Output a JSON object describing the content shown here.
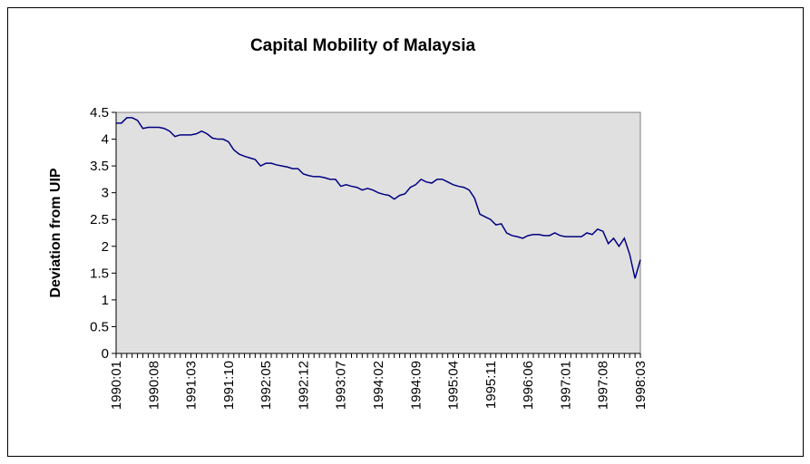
{
  "chart_data": {
    "type": "line",
    "title": "Capital Mobility of Malaysia",
    "y_label": "Deviation from UIP",
    "categories": [
      "1990:01",
      null,
      null,
      null,
      null,
      null,
      null,
      "1990:08",
      null,
      null,
      null,
      null,
      null,
      null,
      "1991:03",
      null,
      null,
      null,
      null,
      null,
      null,
      "1991:10",
      null,
      null,
      null,
      null,
      null,
      null,
      "1992:05",
      null,
      null,
      null,
      null,
      null,
      null,
      "1992:12",
      null,
      null,
      null,
      null,
      null,
      null,
      "1993:07",
      null,
      null,
      null,
      null,
      null,
      null,
      "1994:02",
      null,
      null,
      null,
      null,
      null,
      null,
      "1994:09",
      null,
      null,
      null,
      null,
      null,
      null,
      "1995:04",
      null,
      null,
      null,
      null,
      null,
      null,
      "1995:11",
      null,
      null,
      null,
      null,
      null,
      null,
      "1996:06",
      null,
      null,
      null,
      null,
      null,
      null,
      "1997:01",
      null,
      null,
      null,
      null,
      null,
      null,
      "1997:08",
      null,
      null,
      null,
      null,
      null,
      null,
      "1998:03"
    ],
    "values": [
      4.3,
      4.3,
      4.4,
      4.4,
      4.35,
      4.2,
      4.22,
      4.22,
      4.22,
      4.2,
      4.15,
      4.05,
      4.08,
      4.08,
      4.08,
      4.1,
      4.15,
      4.1,
      4.02,
      4.0,
      4.0,
      3.95,
      3.8,
      3.72,
      3.68,
      3.65,
      3.62,
      3.5,
      3.55,
      3.55,
      3.52,
      3.5,
      3.48,
      3.45,
      3.45,
      3.35,
      3.32,
      3.3,
      3.3,
      3.28,
      3.25,
      3.25,
      3.12,
      3.15,
      3.12,
      3.1,
      3.05,
      3.08,
      3.05,
      3.0,
      2.97,
      2.95,
      2.88,
      2.95,
      2.98,
      3.1,
      3.15,
      3.25,
      3.2,
      3.18,
      3.25,
      3.25,
      3.2,
      3.15,
      3.12,
      3.1,
      3.05,
      2.9,
      2.6,
      2.55,
      2.5,
      2.4,
      2.42,
      2.25,
      2.2,
      2.18,
      2.15,
      2.2,
      2.22,
      2.22,
      2.2,
      2.2,
      2.25,
      2.2,
      2.18,
      2.18,
      2.18,
      2.18,
      2.25,
      2.22,
      2.32,
      2.28,
      2.05,
      2.15,
      2.0,
      2.15,
      1.85,
      1.4,
      1.75
    ],
    "color": "#000080",
    "ylim": [
      0,
      4.5
    ],
    "yticks": [
      0,
      0.5,
      1,
      1.5,
      2,
      2.5,
      3,
      3.5,
      4,
      4.5
    ],
    "plot_background": "#e0e0e0"
  }
}
